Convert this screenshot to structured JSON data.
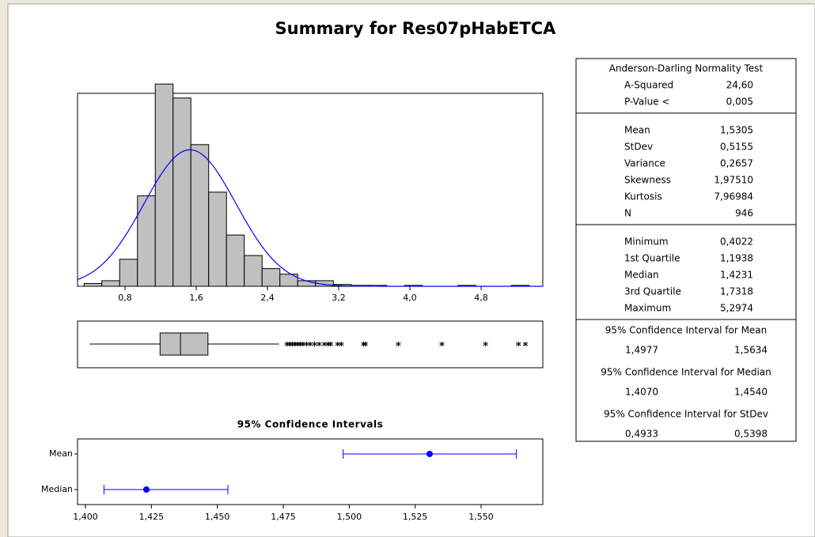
{
  "title": "Summary for Res07pHabETCA",
  "chart_data": [
    {
      "type": "histogram",
      "bins": [
        0.34,
        0.54,
        0.74,
        0.94,
        1.14,
        1.34,
        1.54,
        1.74,
        1.94,
        2.14,
        2.34,
        2.54,
        2.74,
        2.94,
        3.14,
        3.34,
        3.54,
        3.74,
        3.94,
        4.14,
        4.34,
        4.54,
        4.74,
        4.94,
        5.14,
        5.34
      ],
      "values": [
        3,
        6,
        29,
        97,
        217,
        202,
        152,
        101,
        55,
        33,
        19,
        13,
        6,
        6,
        2,
        1,
        1,
        0,
        1,
        0,
        0,
        1,
        0,
        0,
        1
      ],
      "color": "#c0c0c0",
      "curve": {
        "mean": 1.5305,
        "stdev": 0.5155,
        "color": "#0000ff"
      },
      "xlim": [
        0.267,
        5.493
      ],
      "ylim": [
        0,
        207
      ],
      "xticks": [
        {
          "value": 0.8,
          "label": "0,8"
        },
        {
          "value": 1.6,
          "label": "1,6"
        },
        {
          "value": 2.4,
          "label": "2,4"
        },
        {
          "value": 3.2,
          "label": "3,2"
        },
        {
          "value": 4.0,
          "label": "4,0"
        },
        {
          "value": 4.8,
          "label": "4,8"
        }
      ]
    },
    {
      "type": "boxplot",
      "whisker_low": 0.4022,
      "q1": 1.1938,
      "median": 1.4231,
      "q3": 1.7318,
      "whisker_high": 2.53,
      "outliers": [
        2.62,
        2.65,
        2.68,
        2.71,
        2.74,
        2.77,
        2.8,
        2.84,
        2.88,
        2.93,
        2.98,
        3.04,
        3.08,
        3.11,
        3.19,
        3.23,
        3.48,
        3.5,
        3.87,
        4.36,
        4.85,
        5.22,
        5.2974
      ],
      "color": "#c0c0c0",
      "xlim": [
        0.267,
        5.493
      ]
    },
    {
      "type": "interval",
      "title": "95% Confidence Intervals",
      "categories": [
        "Mean",
        "Median"
      ],
      "values": [
        1.5305,
        1.4231
      ],
      "lower": [
        1.4977,
        1.407
      ],
      "upper": [
        1.5634,
        1.454
      ],
      "color": "#0000ff",
      "xlim": [
        1.397,
        1.5734
      ],
      "xticks": [
        {
          "value": 1.4,
          "label": "1,400"
        },
        {
          "value": 1.425,
          "label": "1,425"
        },
        {
          "value": 1.45,
          "label": "1,450"
        },
        {
          "value": 1.475,
          "label": "1,475"
        },
        {
          "value": 1.5,
          "label": "1,500"
        },
        {
          "value": 1.525,
          "label": "1,525"
        },
        {
          "value": 1.55,
          "label": "1,550"
        }
      ]
    }
  ],
  "summary_table": {
    "sections": [
      {
        "title": "Anderson-Darling Normality Test",
        "rows": [
          [
            "A-Squared",
            "24,60"
          ],
          [
            "P-Value <",
            "0,005"
          ]
        ]
      },
      {
        "rows": [
          [
            "Mean",
            "1,5305"
          ],
          [
            "StDev",
            "0,5155"
          ],
          [
            "Variance",
            "0,2657"
          ],
          [
            "Skewness",
            "1,97510"
          ],
          [
            "Kurtosis",
            "7,96984"
          ],
          [
            "N",
            "946"
          ]
        ]
      },
      {
        "rows": [
          [
            "Minimum",
            "0,4022"
          ],
          [
            "1st Quartile",
            "1,1938"
          ],
          [
            "Median",
            "1,4231"
          ],
          [
            "3rd Quartile",
            "1,7318"
          ],
          [
            "Maximum",
            "5,2974"
          ]
        ]
      }
    ],
    "intervals": [
      {
        "title": "95% Confidence Interval for Mean",
        "bounds": [
          "1,4977",
          "1,5634"
        ]
      },
      {
        "title": "95% Confidence Interval for Median",
        "bounds": [
          "1,4070",
          "1,4540"
        ]
      },
      {
        "title": "95% Confidence Interval for StDev",
        "bounds": [
          "0,4933",
          "0,5398"
        ]
      }
    ]
  }
}
